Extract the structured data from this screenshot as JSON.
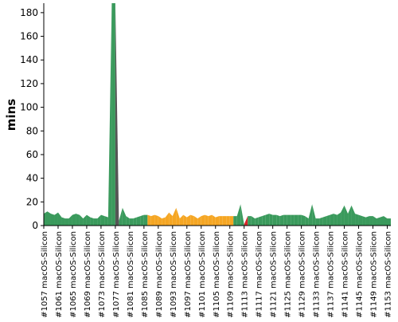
{
  "chart_data": {
    "type": "area",
    "ylabel": "mins",
    "ylim": [
      0,
      188
    ],
    "y_ticks": [
      0,
      20,
      40,
      60,
      80,
      100,
      120,
      140,
      160,
      180
    ],
    "x_tick_labels": [
      "#1057 macOS-Silicon",
      "#1061 macOS-Silicon",
      "#1065 macOS-Silicon",
      "#1069 macOS-Silicon",
      "#1073 macOS-Silicon",
      "#1077 macOS-Silicon",
      "#1081 macOS-Silicon",
      "#1085 macOS-Silicon",
      "#1089 macOS-Silicon",
      "#1093 macOS-Silicon",
      "#1097 macOS-Silicon",
      "#1101 macOS-Silicon",
      "#1105 macOS-Silicon",
      "#1109 macOS-Silicon",
      "#1113 macOS-Silicon",
      "#1117 macOS-Silicon",
      "#1121 macOS-Silicon",
      "#1125 macOS-Silicon",
      "#1129 macOS-Silicon",
      "#1133 macOS-Silicon",
      "#1137 macOS-Silicon",
      "#1141 macOS-Silicon",
      "#1145 macOS-Silicon",
      "#1149 macOS-Silicon",
      "#1153 macOS-Silicon"
    ],
    "x_start_build": 1057,
    "colors": {
      "success": "#3a9a5c",
      "unstable": "#f5a623",
      "aborted": "#555555",
      "failure": "#d9262a",
      "axis": "#000000"
    },
    "builds": [
      {
        "n": 1057,
        "d": 10,
        "s": "success"
      },
      {
        "n": 1058,
        "d": 12,
        "s": "success"
      },
      {
        "n": 1059,
        "d": 10,
        "s": "success"
      },
      {
        "n": 1060,
        "d": 9,
        "s": "success"
      },
      {
        "n": 1061,
        "d": 11,
        "s": "success"
      },
      {
        "n": 1062,
        "d": 7,
        "s": "success"
      },
      {
        "n": 1063,
        "d": 6,
        "s": "success"
      },
      {
        "n": 1064,
        "d": 6,
        "s": "success"
      },
      {
        "n": 1065,
        "d": 9,
        "s": "success"
      },
      {
        "n": 1066,
        "d": 10,
        "s": "success"
      },
      {
        "n": 1067,
        "d": 9,
        "s": "success"
      },
      {
        "n": 1068,
        "d": 6,
        "s": "success"
      },
      {
        "n": 1069,
        "d": 9,
        "s": "success"
      },
      {
        "n": 1070,
        "d": 7,
        "s": "success"
      },
      {
        "n": 1071,
        "d": 6,
        "s": "success"
      },
      {
        "n": 1072,
        "d": 6,
        "s": "success"
      },
      {
        "n": 1073,
        "d": 9,
        "s": "success"
      },
      {
        "n": 1074,
        "d": 8,
        "s": "success"
      },
      {
        "n": 1075,
        "d": 7,
        "s": "success"
      },
      {
        "n": 1076,
        "d": 188,
        "s": "success"
      },
      {
        "n": 1077,
        "d": 188,
        "s": "aborted"
      },
      {
        "n": 1078,
        "d": 4,
        "s": "success"
      },
      {
        "n": 1079,
        "d": 15,
        "s": "success"
      },
      {
        "n": 1080,
        "d": 8,
        "s": "success"
      },
      {
        "n": 1081,
        "d": 6,
        "s": "success"
      },
      {
        "n": 1082,
        "d": 6,
        "s": "success"
      },
      {
        "n": 1083,
        "d": 7,
        "s": "success"
      },
      {
        "n": 1084,
        "d": 8,
        "s": "success"
      },
      {
        "n": 1085,
        "d": 9,
        "s": "success"
      },
      {
        "n": 1086,
        "d": 9,
        "s": "unstable"
      },
      {
        "n": 1087,
        "d": 8,
        "s": "unstable"
      },
      {
        "n": 1088,
        "d": 9,
        "s": "unstable"
      },
      {
        "n": 1089,
        "d": 8,
        "s": "unstable"
      },
      {
        "n": 1090,
        "d": 6,
        "s": "unstable"
      },
      {
        "n": 1091,
        "d": 7,
        "s": "unstable"
      },
      {
        "n": 1092,
        "d": 11,
        "s": "unstable"
      },
      {
        "n": 1093,
        "d": 8,
        "s": "unstable"
      },
      {
        "n": 1094,
        "d": 15,
        "s": "unstable"
      },
      {
        "n": 1095,
        "d": 6,
        "s": "unstable"
      },
      {
        "n": 1096,
        "d": 9,
        "s": "unstable"
      },
      {
        "n": 1097,
        "d": 7,
        "s": "unstable"
      },
      {
        "n": 1098,
        "d": 9,
        "s": "unstable"
      },
      {
        "n": 1099,
        "d": 8,
        "s": "unstable"
      },
      {
        "n": 1100,
        "d": 6,
        "s": "unstable"
      },
      {
        "n": 1101,
        "d": 8,
        "s": "unstable"
      },
      {
        "n": 1102,
        "d": 9,
        "s": "unstable"
      },
      {
        "n": 1103,
        "d": 8,
        "s": "unstable"
      },
      {
        "n": 1104,
        "d": 9,
        "s": "unstable"
      },
      {
        "n": 1105,
        "d": 7,
        "s": "unstable"
      },
      {
        "n": 1106,
        "d": 8,
        "s": "unstable"
      },
      {
        "n": 1107,
        "d": 8,
        "s": "unstable"
      },
      {
        "n": 1108,
        "d": 8,
        "s": "unstable"
      },
      {
        "n": 1109,
        "d": 8,
        "s": "unstable"
      },
      {
        "n": 1110,
        "d": 8,
        "s": "success"
      },
      {
        "n": 1111,
        "d": 8,
        "s": "success"
      },
      {
        "n": 1112,
        "d": 18,
        "s": "success"
      },
      {
        "n": 1113,
        "d": 1,
        "s": "failure"
      },
      {
        "n": 1114,
        "d": 8,
        "s": "success"
      },
      {
        "n": 1115,
        "d": 8,
        "s": "success"
      },
      {
        "n": 1116,
        "d": 6,
        "s": "success"
      },
      {
        "n": 1117,
        "d": 7,
        "s": "success"
      },
      {
        "n": 1118,
        "d": 8,
        "s": "success"
      },
      {
        "n": 1119,
        "d": 9,
        "s": "success"
      },
      {
        "n": 1120,
        "d": 10,
        "s": "success"
      },
      {
        "n": 1121,
        "d": 9,
        "s": "success"
      },
      {
        "n": 1122,
        "d": 9,
        "s": "success"
      },
      {
        "n": 1123,
        "d": 8,
        "s": "success"
      },
      {
        "n": 1124,
        "d": 9,
        "s": "success"
      },
      {
        "n": 1125,
        "d": 9,
        "s": "success"
      },
      {
        "n": 1126,
        "d": 9,
        "s": "success"
      },
      {
        "n": 1127,
        "d": 9,
        "s": "success"
      },
      {
        "n": 1128,
        "d": 9,
        "s": "success"
      },
      {
        "n": 1129,
        "d": 9,
        "s": "success"
      },
      {
        "n": 1130,
        "d": 8,
        "s": "success"
      },
      {
        "n": 1131,
        "d": 6,
        "s": "success"
      },
      {
        "n": 1132,
        "d": 18,
        "s": "success"
      },
      {
        "n": 1133,
        "d": 6,
        "s": "success"
      },
      {
        "n": 1134,
        "d": 6,
        "s": "success"
      },
      {
        "n": 1135,
        "d": 7,
        "s": "success"
      },
      {
        "n": 1136,
        "d": 8,
        "s": "success"
      },
      {
        "n": 1137,
        "d": 9,
        "s": "success"
      },
      {
        "n": 1138,
        "d": 10,
        "s": "success"
      },
      {
        "n": 1139,
        "d": 9,
        "s": "success"
      },
      {
        "n": 1140,
        "d": 11,
        "s": "success"
      },
      {
        "n": 1141,
        "d": 17,
        "s": "success"
      },
      {
        "n": 1142,
        "d": 10,
        "s": "success"
      },
      {
        "n": 1143,
        "d": 17,
        "s": "success"
      },
      {
        "n": 1144,
        "d": 10,
        "s": "success"
      },
      {
        "n": 1145,
        "d": 9,
        "s": "success"
      },
      {
        "n": 1146,
        "d": 8,
        "s": "success"
      },
      {
        "n": 1147,
        "d": 7,
        "s": "success"
      },
      {
        "n": 1148,
        "d": 8,
        "s": "success"
      },
      {
        "n": 1149,
        "d": 8,
        "s": "success"
      },
      {
        "n": 1150,
        "d": 6,
        "s": "success"
      },
      {
        "n": 1151,
        "d": 7,
        "s": "success"
      },
      {
        "n": 1152,
        "d": 8,
        "s": "success"
      },
      {
        "n": 1153,
        "d": 6,
        "s": "success"
      },
      {
        "n": 1154,
        "d": 6,
        "s": "success"
      }
    ]
  }
}
